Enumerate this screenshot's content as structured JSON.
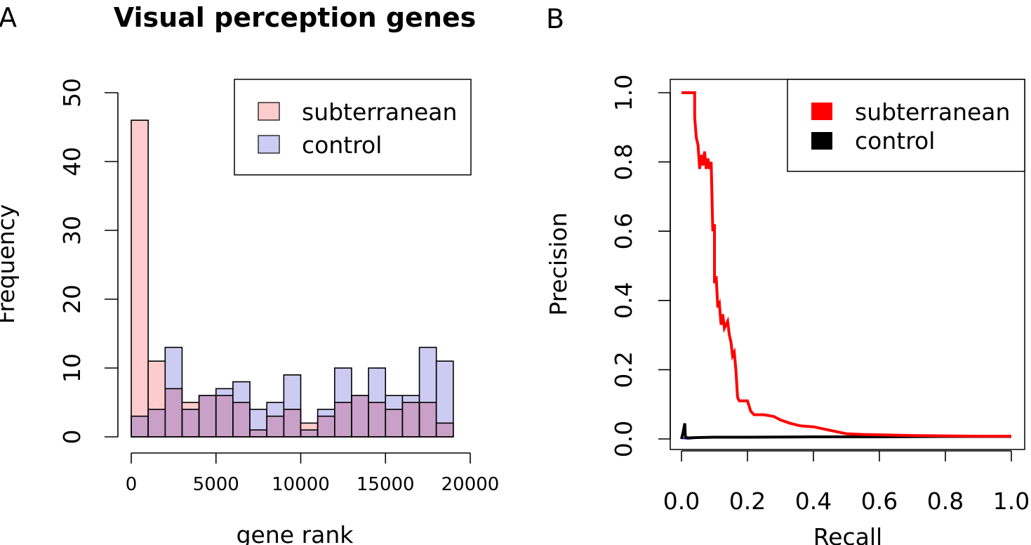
{
  "chart_data": [
    {
      "type": "bar",
      "panel_label": "A",
      "title": "Visual perception genes",
      "xlabel": "gene rank",
      "ylabel": "Frequency",
      "bin_width": 1000,
      "bins_start": [
        0,
        1000,
        2000,
        3000,
        4000,
        5000,
        6000,
        7000,
        8000,
        9000,
        10000,
        11000,
        12000,
        13000,
        14000,
        15000,
        16000,
        17000,
        18000
      ],
      "series": [
        {
          "name": "subterranean",
          "color": "#ffcccc",
          "values": [
            46,
            11,
            7,
            5,
            6,
            6,
            5,
            1,
            3,
            4,
            2,
            3,
            5,
            6,
            5,
            4,
            5,
            5,
            2
          ]
        },
        {
          "name": "control",
          "color": "#ccccf2",
          "values": [
            3,
            4,
            13,
            4,
            6,
            7,
            8,
            4,
            5,
            9,
            1,
            4,
            10,
            6,
            10,
            6,
            6,
            13,
            11
          ]
        }
      ],
      "overlap_color": "#c9a0c8",
      "xlim": [
        0,
        20000
      ],
      "ylim": [
        0,
        50
      ],
      "xticks": [
        "0",
        "5000",
        "10000",
        "15000",
        "20000"
      ],
      "xtick_values": [
        0,
        5000,
        10000,
        15000,
        20000
      ],
      "yticks": [
        "0",
        "10",
        "20",
        "30",
        "40",
        "50"
      ],
      "ytick_values": [
        0,
        10,
        20,
        30,
        40,
        50
      ],
      "legend_position": "top-right"
    },
    {
      "type": "line",
      "panel_label": "B",
      "xlabel": "Recall",
      "ylabel": "Precision",
      "xlim": [
        0,
        1
      ],
      "ylim": [
        0,
        1
      ],
      "xticks": [
        "0.0",
        "0.2",
        "0.4",
        "0.6",
        "0.8",
        "1.0"
      ],
      "xtick_values": [
        0,
        0.2,
        0.4,
        0.6,
        0.8,
        1.0
      ],
      "yticks": [
        "0.0",
        "0.2",
        "0.4",
        "0.6",
        "0.8",
        "1.0"
      ],
      "ytick_values": [
        0,
        0.2,
        0.4,
        0.6,
        0.8,
        1.0
      ],
      "legend_position": "top-right",
      "series": [
        {
          "name": "subterranean",
          "color": "#ff0000",
          "points": [
            [
              0.0,
              1.0
            ],
            [
              0.04,
              1.0
            ],
            [
              0.04,
              0.93
            ],
            [
              0.045,
              0.87
            ],
            [
              0.05,
              0.85
            ],
            [
              0.055,
              0.78
            ],
            [
              0.06,
              0.82
            ],
            [
              0.065,
              0.79
            ],
            [
              0.07,
              0.83
            ],
            [
              0.075,
              0.78
            ],
            [
              0.08,
              0.81
            ],
            [
              0.085,
              0.78
            ],
            [
              0.09,
              0.8
            ],
            [
              0.095,
              0.6
            ],
            [
              0.1,
              0.62
            ],
            [
              0.1,
              0.45
            ],
            [
              0.105,
              0.47
            ],
            [
              0.11,
              0.38
            ],
            [
              0.115,
              0.39
            ],
            [
              0.12,
              0.33
            ],
            [
              0.125,
              0.36
            ],
            [
              0.13,
              0.32
            ],
            [
              0.14,
              0.34
            ],
            [
              0.145,
              0.3
            ],
            [
              0.15,
              0.28
            ],
            [
              0.155,
              0.24
            ],
            [
              0.16,
              0.25
            ],
            [
              0.165,
              0.2
            ],
            [
              0.17,
              0.12
            ],
            [
              0.175,
              0.11
            ],
            [
              0.2,
              0.11
            ],
            [
              0.21,
              0.08
            ],
            [
              0.22,
              0.07
            ],
            [
              0.25,
              0.07
            ],
            [
              0.28,
              0.065
            ],
            [
              0.3,
              0.055
            ],
            [
              0.33,
              0.045
            ],
            [
              0.36,
              0.038
            ],
            [
              0.4,
              0.035
            ],
            [
              0.45,
              0.025
            ],
            [
              0.5,
              0.015
            ],
            [
              0.55,
              0.013
            ],
            [
              0.6,
              0.012
            ],
            [
              0.7,
              0.01
            ],
            [
              0.8,
              0.009
            ],
            [
              0.9,
              0.008
            ],
            [
              1.0,
              0.008
            ]
          ]
        },
        {
          "name": "control",
          "color": "#000000",
          "points": [
            [
              0.0,
              0.0
            ],
            [
              0.005,
              0.02
            ],
            [
              0.01,
              0.045
            ],
            [
              0.012,
              0.005
            ],
            [
              0.02,
              0.003
            ],
            [
              0.05,
              0.004
            ],
            [
              0.1,
              0.005
            ],
            [
              0.2,
              0.005
            ],
            [
              0.4,
              0.006
            ],
            [
              0.6,
              0.006
            ],
            [
              0.8,
              0.007
            ],
            [
              1.0,
              0.007
            ]
          ]
        },
        {
          "color": "#2222cc",
          "points": [
            [
              0.0,
              0.002
            ],
            [
              0.02,
              0.0
            ],
            [
              0.05,
              0.003
            ],
            [
              0.1,
              0.004
            ],
            [
              0.15,
              0.004
            ],
            [
              0.2,
              0.005
            ],
            [
              0.25,
              0.004
            ]
          ]
        }
      ]
    }
  ]
}
